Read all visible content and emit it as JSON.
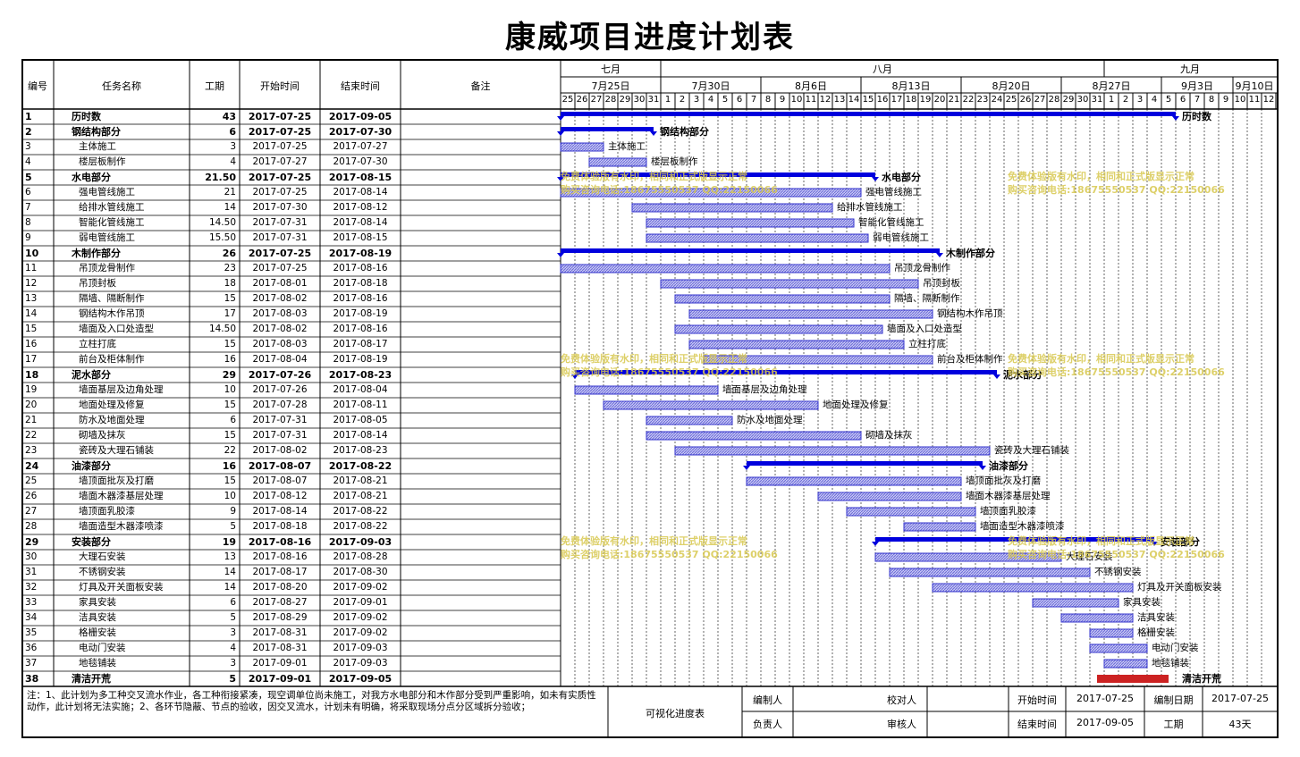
{
  "title": "康威项目进度计划表",
  "headers": {
    "id": "编号",
    "name": "任务名称",
    "duration": "工期",
    "start": "开始时间",
    "end": "结束时间",
    "note": "备注"
  },
  "months": [
    {
      "label": "七月",
      "from": 0,
      "to": 7
    },
    {
      "label": "八月",
      "from": 7,
      "to": 38
    },
    {
      "label": "九月",
      "from": 38,
      "to": 50
    }
  ],
  "weeks": [
    {
      "label": "7月25日",
      "from": 0,
      "to": 7
    },
    {
      "label": "7月30日",
      "from": 7,
      "to": 14
    },
    {
      "label": "8月6日",
      "from": 14,
      "to": 21
    },
    {
      "label": "8月13日",
      "from": 21,
      "to": 28
    },
    {
      "label": "8月20日",
      "from": 28,
      "to": 35
    },
    {
      "label": "8月27日",
      "from": 35,
      "to": 42
    },
    {
      "label": "9月3日",
      "from": 42,
      "to": 47
    },
    {
      "label": "9月10日",
      "from": 47,
      "to": 50
    }
  ],
  "days": [
    "25",
    "26",
    "27",
    "28",
    "29",
    "30",
    "31",
    "1",
    "2",
    "3",
    "4",
    "5",
    "6",
    "7",
    "8",
    "9",
    "10",
    "11",
    "12",
    "13",
    "14",
    "15",
    "16",
    "17",
    "18",
    "19",
    "20",
    "21",
    "22",
    "23",
    "24",
    "25",
    "26",
    "27",
    "28",
    "29",
    "30",
    "31",
    "1",
    "2",
    "3",
    "4",
    "5",
    "6",
    "7",
    "8",
    "9",
    "10",
    "11",
    "12"
  ],
  "tasks": [
    {
      "id": "1",
      "name": "历时数",
      "duration": "43",
      "start": "2017-07-25",
      "end": "2017-09-05",
      "summary": true,
      "s": 0,
      "e": 43
    },
    {
      "id": "2",
      "name": "钢结构部分",
      "duration": "6",
      "start": "2017-07-25",
      "end": "2017-07-30",
      "summary": true,
      "s": 0,
      "e": 6.5
    },
    {
      "id": "3",
      "name": "主体施工",
      "duration": "3",
      "start": "2017-07-25",
      "end": "2017-07-27",
      "s": 0,
      "e": 3
    },
    {
      "id": "4",
      "name": "楼层板制作",
      "duration": "4",
      "start": "2017-07-27",
      "end": "2017-07-30",
      "s": 2,
      "e": 6
    },
    {
      "id": "5",
      "name": "水电部分",
      "duration": "21.50",
      "start": "2017-07-25",
      "end": "2017-08-15",
      "summary": true,
      "s": 0,
      "e": 22
    },
    {
      "id": "6",
      "name": "强电管线施工",
      "duration": "21",
      "start": "2017-07-25",
      "end": "2017-08-14",
      "s": 0,
      "e": 21
    },
    {
      "id": "7",
      "name": "给排水管线施工",
      "duration": "14",
      "start": "2017-07-30",
      "end": "2017-08-12",
      "s": 5,
      "e": 19
    },
    {
      "id": "8",
      "name": "智能化管线施工",
      "duration": "14.50",
      "start": "2017-07-31",
      "end": "2017-08-14",
      "s": 6,
      "e": 20.5
    },
    {
      "id": "9",
      "name": "弱电管线施工",
      "duration": "15.50",
      "start": "2017-07-31",
      "end": "2017-08-15",
      "s": 6,
      "e": 21.5
    },
    {
      "id": "10",
      "name": "木制作部分",
      "duration": "26",
      "start": "2017-07-25",
      "end": "2017-08-19",
      "summary": true,
      "s": 0,
      "e": 26.5
    },
    {
      "id": "11",
      "name": "吊顶龙骨制作",
      "duration": "23",
      "start": "2017-07-25",
      "end": "2017-08-16",
      "s": 0,
      "e": 23
    },
    {
      "id": "12",
      "name": "吊顶封板",
      "duration": "18",
      "start": "2017-08-01",
      "end": "2017-08-18",
      "s": 7,
      "e": 25
    },
    {
      "id": "13",
      "name": "隔墙、隔断制作",
      "duration": "15",
      "start": "2017-08-02",
      "end": "2017-08-16",
      "s": 8,
      "e": 23
    },
    {
      "id": "14",
      "name": "钢结构木作吊顶",
      "duration": "17",
      "start": "2017-08-03",
      "end": "2017-08-19",
      "s": 9,
      "e": 26
    },
    {
      "id": "15",
      "name": "墙面及入口处造型",
      "duration": "14.50",
      "start": "2017-08-02",
      "end": "2017-08-16",
      "s": 8,
      "e": 22.5
    },
    {
      "id": "16",
      "name": "立柱打底",
      "duration": "15",
      "start": "2017-08-03",
      "end": "2017-08-17",
      "s": 9,
      "e": 24
    },
    {
      "id": "17",
      "name": "前台及柜体制作",
      "duration": "16",
      "start": "2017-08-04",
      "end": "2017-08-19",
      "s": 10,
      "e": 26
    },
    {
      "id": "18",
      "name": "泥水部分",
      "duration": "29",
      "start": "2017-07-26",
      "end": "2017-08-23",
      "summary": true,
      "s": 1,
      "e": 30.5
    },
    {
      "id": "19",
      "name": "墙面基层及边角处理",
      "duration": "10",
      "start": "2017-07-26",
      "end": "2017-08-04",
      "s": 1,
      "e": 11
    },
    {
      "id": "20",
      "name": "地面处理及修复",
      "duration": "15",
      "start": "2017-07-28",
      "end": "2017-08-11",
      "s": 3,
      "e": 18
    },
    {
      "id": "21",
      "name": "防水及地面处理",
      "duration": "6",
      "start": "2017-07-31",
      "end": "2017-08-05",
      "s": 6,
      "e": 12
    },
    {
      "id": "22",
      "name": "砌墙及抹灰",
      "duration": "15",
      "start": "2017-07-31",
      "end": "2017-08-14",
      "s": 6,
      "e": 21
    },
    {
      "id": "23",
      "name": "瓷砖及大理石铺装",
      "duration": "22",
      "start": "2017-08-02",
      "end": "2017-08-23",
      "s": 8,
      "e": 30
    },
    {
      "id": "24",
      "name": "油漆部分",
      "duration": "16",
      "start": "2017-08-07",
      "end": "2017-08-22",
      "summary": true,
      "s": 13,
      "e": 29.5
    },
    {
      "id": "25",
      "name": "墙顶面批灰及打磨",
      "duration": "15",
      "start": "2017-08-07",
      "end": "2017-08-21",
      "s": 13,
      "e": 28
    },
    {
      "id": "26",
      "name": "墙面木器漆基层处理",
      "duration": "10",
      "start": "2017-08-12",
      "end": "2017-08-21",
      "s": 18,
      "e": 28
    },
    {
      "id": "27",
      "name": "墙顶面乳胶漆",
      "duration": "9",
      "start": "2017-08-14",
      "end": "2017-08-22",
      "s": 20,
      "e": 29
    },
    {
      "id": "28",
      "name": "墙面造型木器漆喷漆",
      "duration": "5",
      "start": "2017-08-18",
      "end": "2017-08-22",
      "s": 24,
      "e": 29
    },
    {
      "id": "29",
      "name": "安装部分",
      "duration": "19",
      "start": "2017-08-16",
      "end": "2017-09-03",
      "summary": true,
      "s": 22,
      "e": 41.5
    },
    {
      "id": "30",
      "name": "大理石安装",
      "duration": "13",
      "start": "2017-08-16",
      "end": "2017-08-28",
      "s": 22,
      "e": 35
    },
    {
      "id": "31",
      "name": "不锈钢安装",
      "duration": "14",
      "start": "2017-08-17",
      "end": "2017-08-30",
      "s": 23,
      "e": 37
    },
    {
      "id": "32",
      "name": "灯具及开关面板安装",
      "duration": "14",
      "start": "2017-08-20",
      "end": "2017-09-02",
      "s": 26,
      "e": 40
    },
    {
      "id": "33",
      "name": "家具安装",
      "duration": "6",
      "start": "2017-08-27",
      "end": "2017-09-01",
      "s": 33,
      "e": 39
    },
    {
      "id": "34",
      "name": "洁具安装",
      "duration": "5",
      "start": "2017-08-29",
      "end": "2017-09-02",
      "s": 35,
      "e": 40
    },
    {
      "id": "35",
      "name": "格栅安装",
      "duration": "3",
      "start": "2017-08-31",
      "end": "2017-09-02",
      "s": 37,
      "e": 40
    },
    {
      "id": "36",
      "name": "电动门安装",
      "duration": "4",
      "start": "2017-08-31",
      "end": "2017-09-03",
      "s": 37,
      "e": 41
    },
    {
      "id": "37",
      "name": "地毯铺装",
      "duration": "3",
      "start": "2017-09-01",
      "end": "2017-09-03",
      "s": 38,
      "e": 41
    },
    {
      "id": "38",
      "name": "清洁开荒",
      "duration": "5",
      "start": "2017-09-01",
      "end": "2017-09-05",
      "summary": true,
      "red": true,
      "s": 38,
      "e": 43
    }
  ],
  "watermarks": [
    {
      "line1": "免费体验版有水印，相同和正式版显示正常",
      "line2": "购买咨询电话:18675550537 QQ:22150066",
      "row": 4
    },
    {
      "line1": "免费体验版有水印，相同和正式版显示正常",
      "line2": "购买咨询电话:18675550537 QQ:22150066",
      "row": 16
    },
    {
      "line1": "免费体验版有水印，相同和正式版显示正常",
      "line2": "购买咨询电话:18675550537 QQ:22150066",
      "row": 28
    }
  ],
  "footer": {
    "note": "注：1、此计划为多工种交叉流水作业，各工种衔接紧凑，现空调单位尚未施工，对我方水电部分和木作部分受到严重影响，如未有实质性动作，此计划将无法实施；2、各环节隐蔽、节点的验收，因交叉流水，计划未有明确，将采取现场分点分区域拆分验收；",
    "visual": "可视化进度表",
    "editor_label": "编制人",
    "checker_label": "校对人",
    "owner_label": "负责人",
    "reviewer_label": "审核人",
    "start_label": "开始时间",
    "start_value": "2017-07-25",
    "date_label": "编制日期",
    "date_value": "2017-07-25",
    "end_label": "结束时间",
    "end_value": "2017-09-05",
    "duration_label": "工期",
    "duration_value": "43天"
  },
  "colors": {
    "summary": "#0000dd",
    "bar": "#3333cc",
    "barFill": "#c8c8f4",
    "red": "#cc2222",
    "watermark": "#d8c850"
  }
}
